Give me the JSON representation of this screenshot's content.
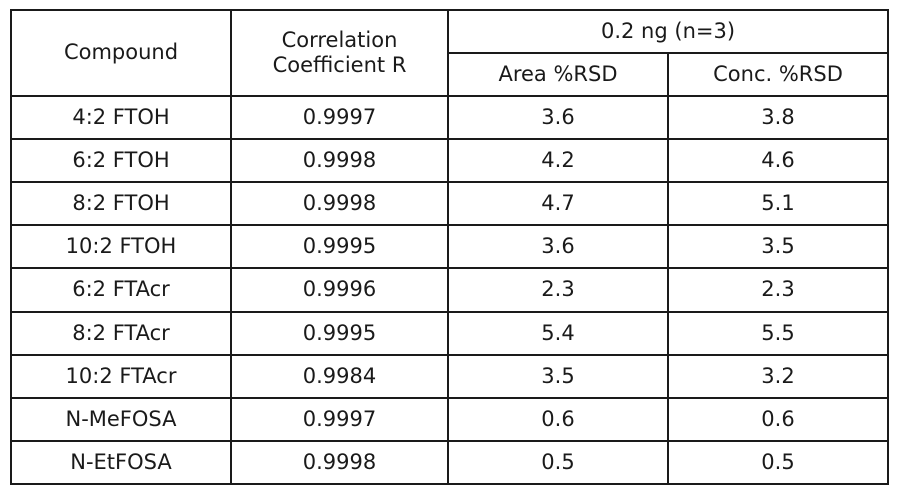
{
  "table": {
    "headers": {
      "compound": "Compound",
      "correlation_line1": "Correlation",
      "correlation_line2": "Coefficient R",
      "group": "0.2 ng (n=3)",
      "area_rsd": "Area %RSD",
      "conc_rsd": "Conc. %RSD"
    },
    "rows": [
      {
        "compound": "4:2 FTOH",
        "r": "0.9997",
        "area": "3.6",
        "conc": "3.8"
      },
      {
        "compound": "6:2 FTOH",
        "r": "0.9998",
        "area": "4.2",
        "conc": "4.6"
      },
      {
        "compound": "8:2 FTOH",
        "r": "0.9998",
        "area": "4.7",
        "conc": "5.1"
      },
      {
        "compound": "10:2 FTOH",
        "r": "0.9995",
        "area": "3.6",
        "conc": "3.5"
      },
      {
        "compound": "6:2 FTAcr",
        "r": "0.9996",
        "area": "2.3",
        "conc": "2.3"
      },
      {
        "compound": "8:2 FTAcr",
        "r": "0.9995",
        "area": "5.4",
        "conc": "5.5"
      },
      {
        "compound": "10:2 FTAcr",
        "r": "0.9984",
        "area": "3.5",
        "conc": "3.2"
      },
      {
        "compound": "N-MeFOSA",
        "r": "0.9997",
        "area": "0.6",
        "conc": "0.6"
      },
      {
        "compound": "N-EtFOSA",
        "r": "0.9998",
        "area": "0.5",
        "conc": "0.5"
      }
    ]
  }
}
